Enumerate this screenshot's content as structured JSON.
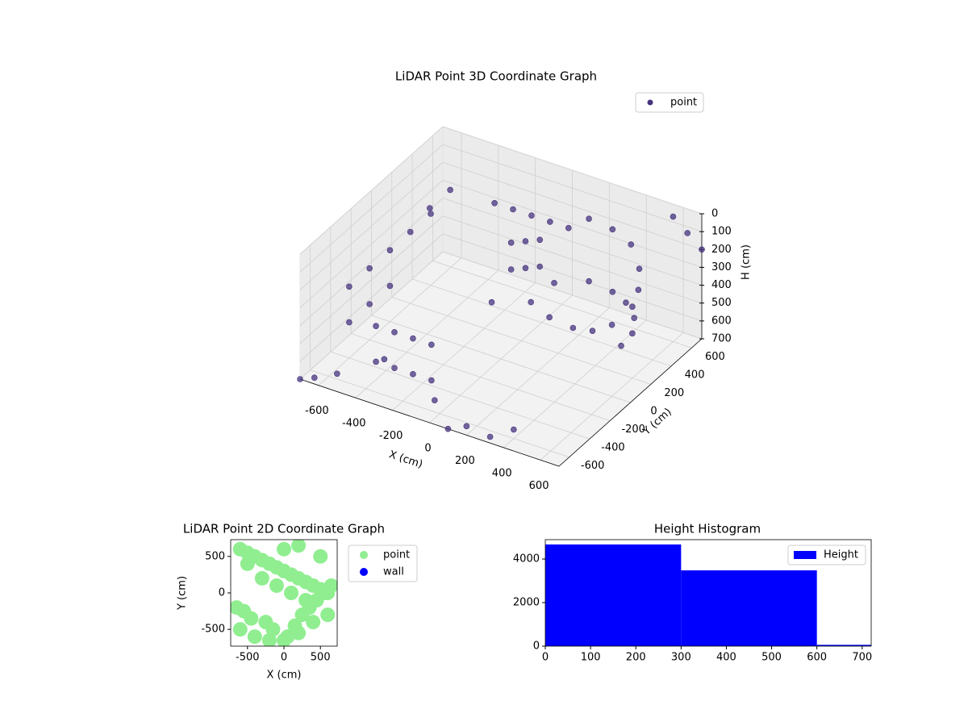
{
  "chart_data": [
    {
      "type": "scatter3d",
      "title": "LiDAR Point 3D Coordinate Graph",
      "xlabel": "X (cm)",
      "ylabel": "Y (cm)",
      "zlabel": "H (cm)",
      "xlim": [
        -700,
        700
      ],
      "ylim": [
        -700,
        700
      ],
      "zlim": [
        0,
        700
      ],
      "z_inverted": true,
      "xticks": [
        -600,
        -400,
        -200,
        0,
        200,
        400,
        600
      ],
      "yticks": [
        -600,
        -400,
        -200,
        0,
        200,
        400,
        600
      ],
      "zticks": [
        0,
        100,
        200,
        300,
        400,
        500,
        600,
        700
      ],
      "grid": true,
      "legend": "upper right",
      "series": [
        {
          "name": "point",
          "color": "#46337e",
          "x": [
            -600,
            -600,
            -600,
            -600,
            -600,
            -600,
            -600,
            -600,
            -550,
            -550,
            -400,
            -300,
            -200,
            -100,
            -400,
            -300,
            -200,
            -100,
            0,
            50,
            100,
            0,
            50,
            100,
            -50,
            150,
            200,
            300,
            400,
            500,
            550,
            600,
            600,
            550,
            500,
            400,
            300,
            200,
            300,
            400,
            500,
            600,
            650,
            -200,
            -100,
            0,
            100,
            200,
            600,
            650,
            700,
            -700,
            -650,
            400,
            300,
            200,
            100,
            0,
            -300,
            -500
          ],
          "y": [
            -400,
            -200,
            0,
            200,
            400,
            -400,
            -200,
            0,
            300,
            500,
            -500,
            -500,
            -500,
            -500,
            -500,
            -500,
            -500,
            -500,
            100,
            150,
            200,
            100,
            150,
            200,
            0,
            250,
            500,
            550,
            550,
            450,
            350,
            200,
            0,
            -100,
            -200,
            -250,
            -250,
            500,
            550,
            500,
            400,
            200,
            0,
            300,
            300,
            300,
            300,
            300,
            600,
            650,
            700,
            -700,
            -650,
            -600,
            -650,
            -700,
            -700,
            -650,
            -600,
            -700
          ],
          "z": [
            300,
            300,
            300,
            300,
            300,
            500,
            500,
            500,
            200,
            200,
            400,
            400,
            400,
            400,
            600,
            600,
            600,
            600,
            100,
            100,
            100,
            250,
            250,
            250,
            400,
            350,
            100,
            150,
            200,
            250,
            300,
            300,
            300,
            300,
            250,
            200,
            150,
            450,
            500,
            500,
            500,
            450,
            400,
            50,
            50,
            50,
            50,
            50,
            0,
            100,
            200,
            700,
            700,
            650,
            700,
            650,
            700,
            600,
            500,
            600
          ]
        }
      ]
    },
    {
      "type": "scatter",
      "title": "LiDAR Point 2D Coordinate Graph",
      "xlabel": "X (cm)",
      "ylabel": "Y (cm)",
      "xlim": [
        -730,
        730
      ],
      "ylim": [
        -730,
        730
      ],
      "xticks": [
        -500,
        0,
        500
      ],
      "yticks": [
        -500,
        0,
        500
      ],
      "legend": "outside right",
      "series": [
        {
          "name": "point",
          "color": "#90ee90",
          "x": [
            -600,
            -500,
            -400,
            -300,
            -200,
            -100,
            0,
            100,
            200,
            300,
            400,
            500,
            600,
            -650,
            -550,
            -450,
            -250,
            -150,
            50,
            150,
            250,
            350,
            450,
            550,
            650,
            -600,
            -400,
            -200,
            0,
            200,
            400,
            600,
            -300,
            -100,
            100,
            300,
            -500,
            500,
            0,
            200
          ],
          "y": [
            600,
            550,
            500,
            450,
            400,
            350,
            300,
            250,
            200,
            150,
            100,
            50,
            0,
            -200,
            -250,
            -350,
            -400,
            -500,
            -600,
            -450,
            -300,
            -200,
            -100,
            0,
            100,
            -500,
            -600,
            -650,
            -650,
            -550,
            -400,
            -300,
            200,
            100,
            0,
            -100,
            400,
            500,
            600,
            650
          ]
        },
        {
          "name": "wall",
          "color": "#0000ff",
          "x": [],
          "y": []
        }
      ]
    },
    {
      "type": "histogram",
      "title": "Height Histogram",
      "name": "Height",
      "color": "#0000ff",
      "bins": [
        0,
        300,
        600,
        900
      ],
      "counts": [
        4670,
        3480,
        60
      ],
      "xlim": [
        0,
        720
      ],
      "ylim": [
        0,
        4890
      ],
      "xticks": [
        0,
        100,
        200,
        300,
        400,
        500,
        600,
        700
      ],
      "yticks": [
        0,
        2000,
        4000
      ],
      "legend": "upper right"
    }
  ]
}
